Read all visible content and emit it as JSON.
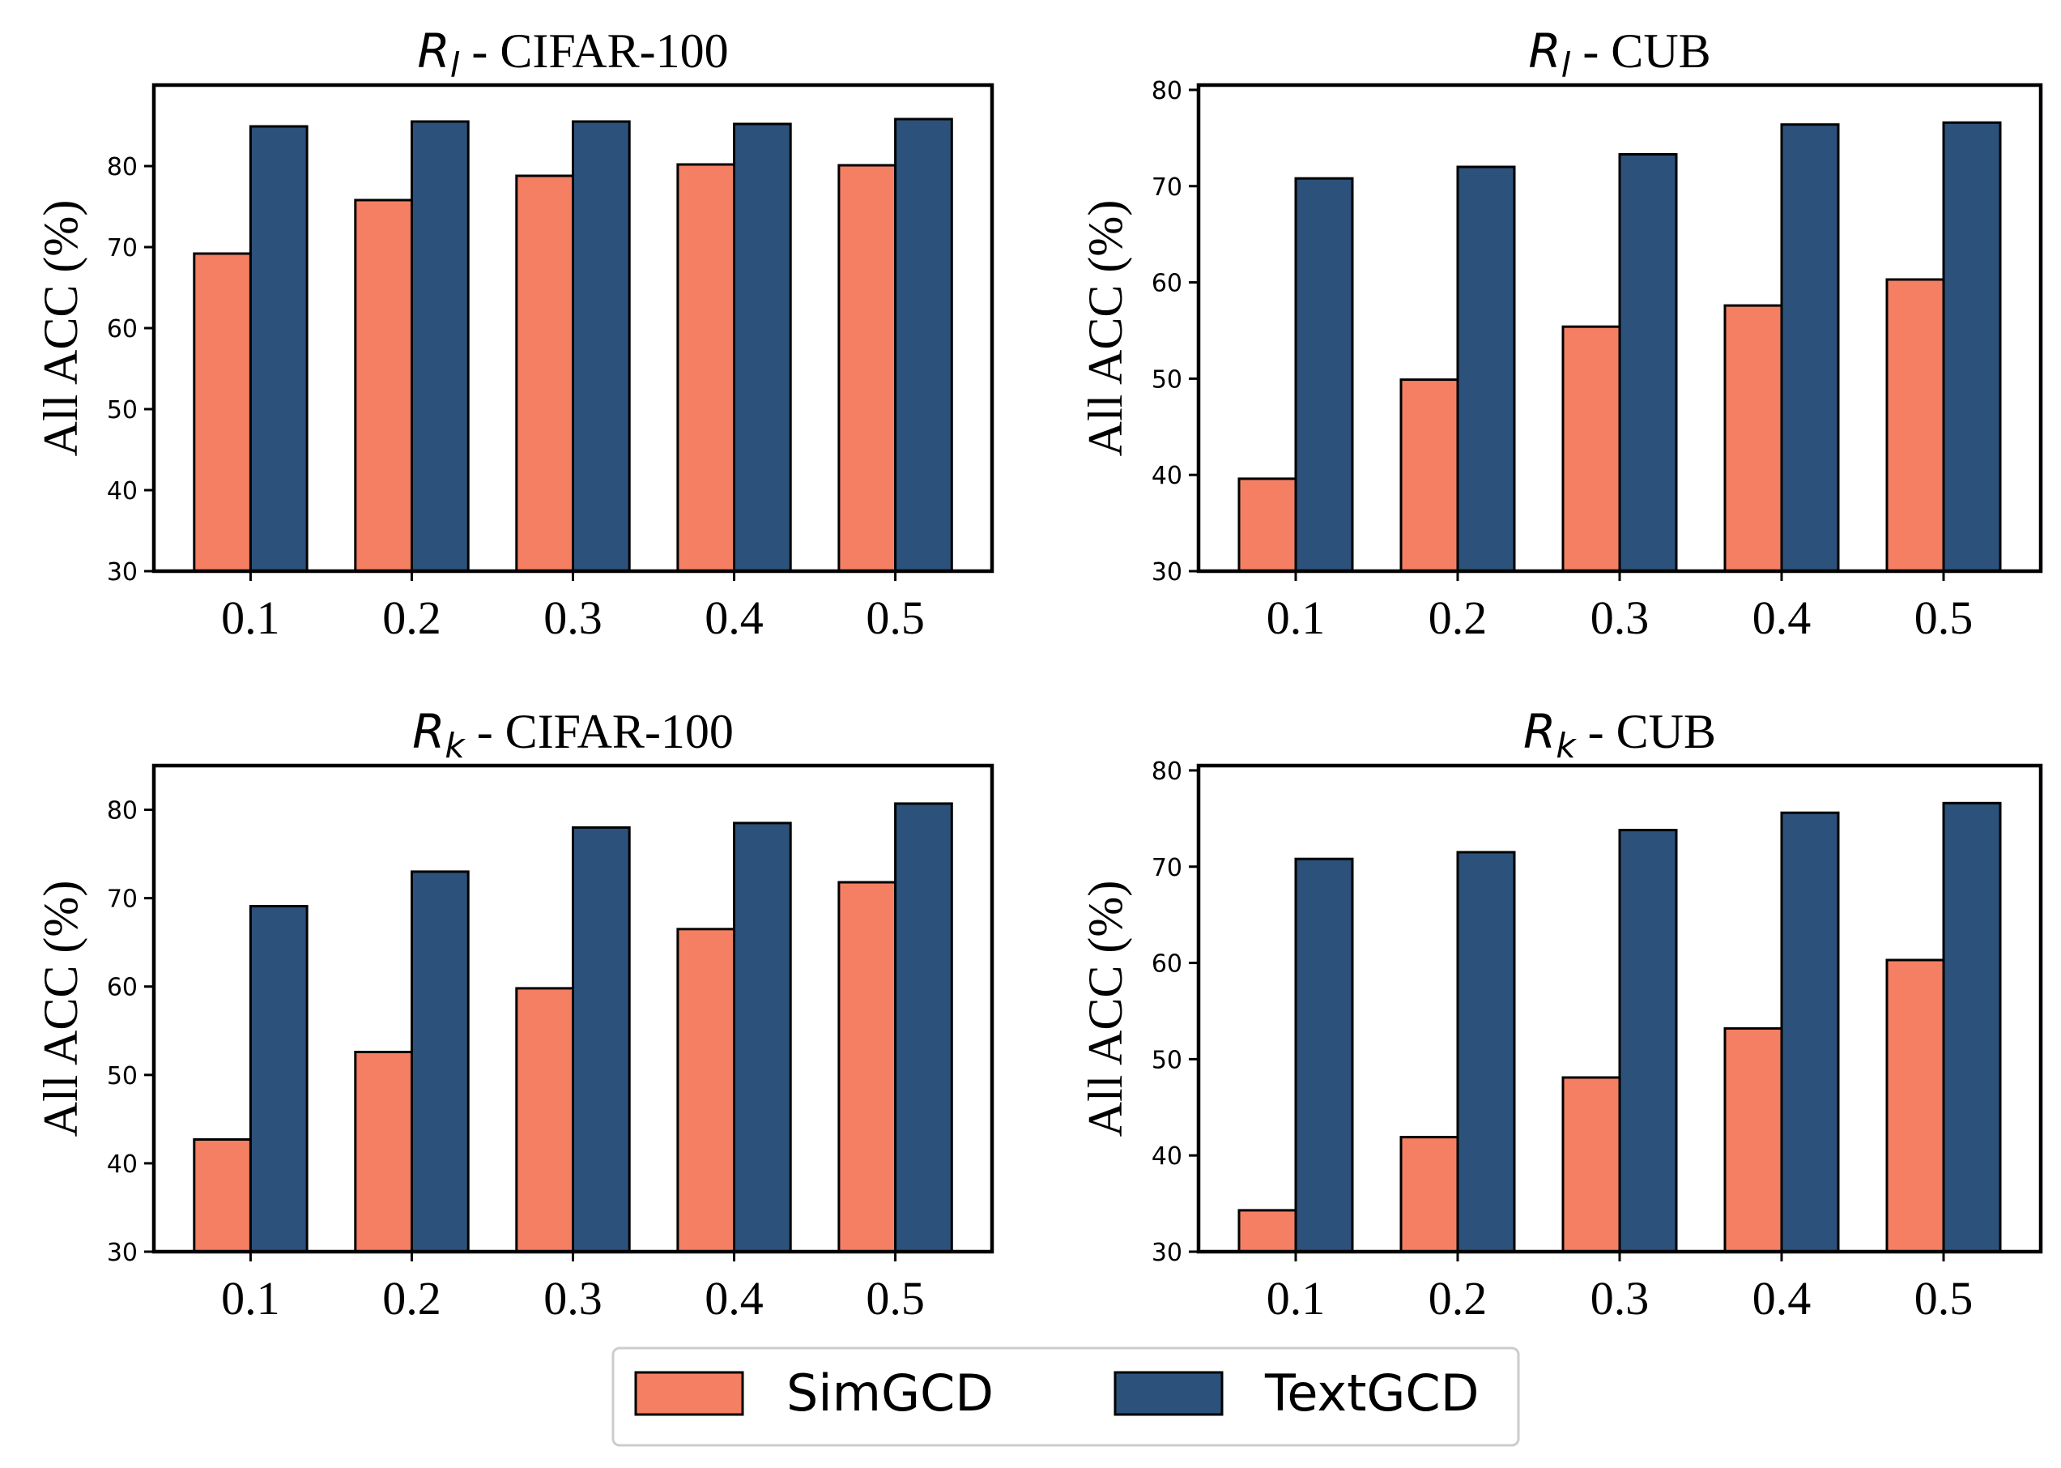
{
  "colors": {
    "simgcd": "#f47f63",
    "textgcd": "#2c527b",
    "edge": "#000000"
  },
  "legend": {
    "placement": "bottom-center",
    "items": [
      "SimGCD",
      "TextGCD"
    ]
  },
  "chart_data": [
    {
      "type": "bar",
      "title": {
        "symbol": "R",
        "sub": "l",
        "rest": " - CIFAR-100"
      },
      "ylabel": "All ACC (%)",
      "ylim": [
        30,
        90
      ],
      "yticks": [
        30,
        40,
        50,
        60,
        70,
        80
      ],
      "categories": [
        "0.1",
        "0.2",
        "0.3",
        "0.4",
        "0.5"
      ],
      "series": [
        {
          "name": "SimGCD",
          "values": [
            69.2,
            75.8,
            78.8,
            80.2,
            80.1
          ]
        },
        {
          "name": "TextGCD",
          "values": [
            84.9,
            85.5,
            85.5,
            85.2,
            85.8
          ]
        }
      ]
    },
    {
      "type": "bar",
      "title": {
        "symbol": "R",
        "sub": "l",
        "rest": " - CUB"
      },
      "ylabel": "All ACC (%)",
      "ylim": [
        30,
        80.5
      ],
      "yticks": [
        30,
        40,
        50,
        60,
        70,
        80
      ],
      "categories": [
        "0.1",
        "0.2",
        "0.3",
        "0.4",
        "0.5"
      ],
      "series": [
        {
          "name": "SimGCD",
          "values": [
            39.6,
            49.9,
            55.4,
            57.6,
            60.3
          ]
        },
        {
          "name": "TextGCD",
          "values": [
            70.8,
            72.0,
            73.3,
            76.4,
            76.6
          ]
        }
      ]
    },
    {
      "type": "bar",
      "title": {
        "symbol": "R",
        "sub": "k",
        "rest": " - CIFAR-100"
      },
      "ylabel": "All ACC (%)",
      "ylim": [
        30,
        85
      ],
      "yticks": [
        30,
        40,
        50,
        60,
        70,
        80
      ],
      "categories": [
        "0.1",
        "0.2",
        "0.3",
        "0.4",
        "0.5"
      ],
      "series": [
        {
          "name": "SimGCD",
          "values": [
            42.7,
            52.6,
            59.8,
            66.5,
            71.8
          ]
        },
        {
          "name": "TextGCD",
          "values": [
            69.1,
            73.0,
            78.0,
            78.5,
            80.7
          ]
        }
      ]
    },
    {
      "type": "bar",
      "title": {
        "symbol": "R",
        "sub": "k",
        "rest": " - CUB"
      },
      "ylabel": "All ACC (%)",
      "ylim": [
        30,
        80.5
      ],
      "yticks": [
        30,
        40,
        50,
        60,
        70,
        80
      ],
      "categories": [
        "0.1",
        "0.2",
        "0.3",
        "0.4",
        "0.5"
      ],
      "series": [
        {
          "name": "SimGCD",
          "values": [
            34.3,
            41.9,
            48.1,
            53.2,
            60.3
          ]
        },
        {
          "name": "TextGCD",
          "values": [
            70.8,
            71.5,
            73.8,
            75.6,
            76.6
          ]
        }
      ]
    }
  ]
}
